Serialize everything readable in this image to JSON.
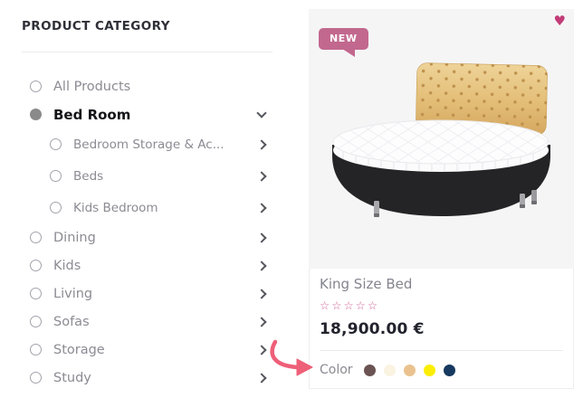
{
  "sidebar": {
    "title": "PRODUCT CATEGORY",
    "items": [
      {
        "label": "All Products",
        "selected": false,
        "level": 0,
        "chevron": "none"
      },
      {
        "label": "Bed Room",
        "selected": true,
        "level": 0,
        "chevron": "down"
      },
      {
        "label": "Bedroom Storage & Ac...",
        "selected": false,
        "level": 1,
        "chevron": "right"
      },
      {
        "label": "Beds",
        "selected": false,
        "level": 1,
        "chevron": "right"
      },
      {
        "label": "Kids Bedroom",
        "selected": false,
        "level": 1,
        "chevron": "right"
      },
      {
        "label": "Dining",
        "selected": false,
        "level": 0,
        "chevron": "right"
      },
      {
        "label": "Kids",
        "selected": false,
        "level": 0,
        "chevron": "right"
      },
      {
        "label": "Living",
        "selected": false,
        "level": 0,
        "chevron": "right"
      },
      {
        "label": "Sofas",
        "selected": false,
        "level": 0,
        "chevron": "right"
      },
      {
        "label": "Storage",
        "selected": false,
        "level": 0,
        "chevron": "right"
      },
      {
        "label": "Study",
        "selected": false,
        "level": 0,
        "chevron": "right"
      }
    ]
  },
  "product_card": {
    "badge_label": "NEW",
    "title": "King Size Bed",
    "price": "18,900.00 €",
    "rating": {
      "stars_total": 5,
      "stars_filled": 0,
      "star_glyph": "☆"
    },
    "color_label": "Color",
    "swatches": [
      {
        "name": "dark-brown",
        "hex": "#6b5353"
      },
      {
        "name": "cream",
        "hex": "#faf3e2"
      },
      {
        "name": "tan",
        "hex": "#eac28f"
      },
      {
        "name": "yellow",
        "hex": "#fbee02"
      },
      {
        "name": "navy",
        "hex": "#16395f"
      }
    ]
  },
  "icons": {
    "heart": "♥",
    "radio": "radio-circle",
    "chevron_right": "chevron-right",
    "chevron_down": "chevron-down"
  },
  "colors": {
    "badge_bg": "#c2688e",
    "heart": "#c33c78",
    "stars": "#d2679b",
    "annotation_arrow": "#ee5f78",
    "card_image_bg": "#f5f5f6",
    "muted_text": "#8b8b93",
    "dark_text": "#141418",
    "price_text": "#23232e"
  }
}
